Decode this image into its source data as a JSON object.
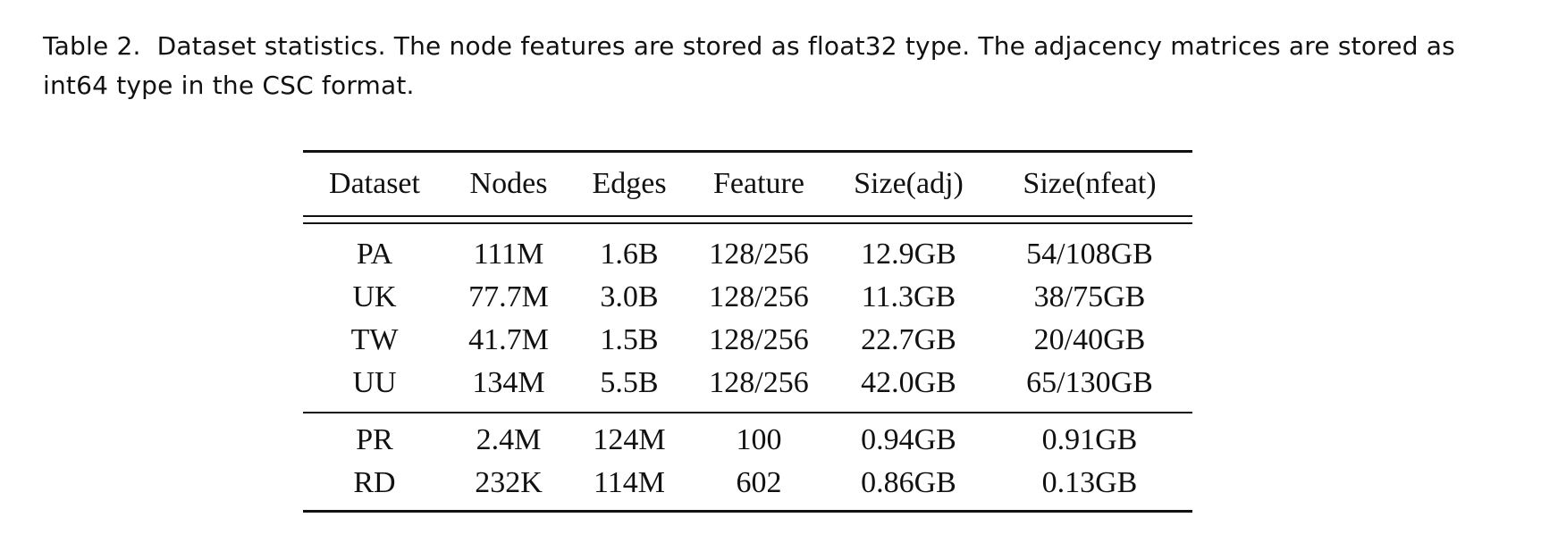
{
  "caption": {
    "label": "Table 2.",
    "text": "Dataset statistics. The node features are stored as float32 type. The adjacency matrices are stored as int64 type in the CSC format."
  },
  "table": {
    "headers": [
      "Dataset",
      "Nodes",
      "Edges",
      "Feature",
      "Size(adj)",
      "Size(nfeat)"
    ],
    "group1": [
      [
        "PA",
        "111M",
        "1.6B",
        "128/256",
        "12.9GB",
        "54/108GB"
      ],
      [
        "UK",
        "77.7M",
        "3.0B",
        "128/256",
        "11.3GB",
        "38/75GB"
      ],
      [
        "TW",
        "41.7M",
        "1.5B",
        "128/256",
        "22.7GB",
        "20/40GB"
      ],
      [
        "UU",
        "134M",
        "5.5B",
        "128/256",
        "42.0GB",
        "65/130GB"
      ]
    ],
    "group2": [
      [
        "PR",
        "2.4M",
        "124M",
        "100",
        "0.94GB",
        "0.91GB"
      ],
      [
        "RD",
        "232K",
        "114M",
        "602",
        "0.86GB",
        "0.13GB"
      ]
    ]
  }
}
